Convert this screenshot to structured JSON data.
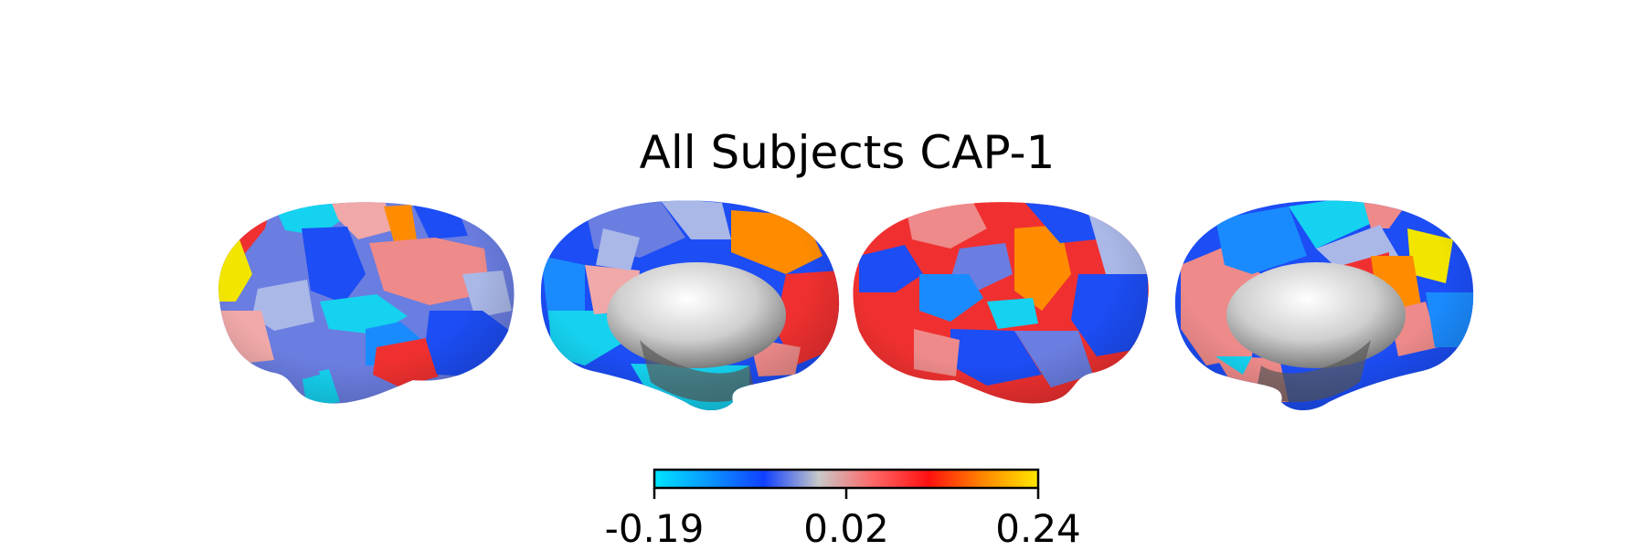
{
  "title": "All Subjects CAP-1",
  "views": [
    {
      "name": "left-lateral"
    },
    {
      "name": "left-medial"
    },
    {
      "name": "right-lateral"
    },
    {
      "name": "right-medial"
    }
  ],
  "colorbar": {
    "min_label": "-0.19",
    "mid_label": "0.02",
    "max_label": "0.24",
    "stops": [
      "#00e5ff",
      "#0a96ff",
      "#1040ff",
      "#c8c8c8",
      "#ff6666",
      "#ff1010",
      "#ff8800",
      "#ffe800"
    ]
  },
  "colors": {
    "cyan": "#15d2f0",
    "sky_blue": "#1a8bff",
    "royal_blue": "#1c4df5",
    "slate_blue": "#6a7de0",
    "light_blue": "#aab8e8",
    "salmon": "#ee8a8a",
    "pink": "#f0a8a8",
    "red": "#f03030",
    "orange": "#ff8c00",
    "yellow": "#f2e600",
    "medial_wall": "#dcdcdc"
  }
}
